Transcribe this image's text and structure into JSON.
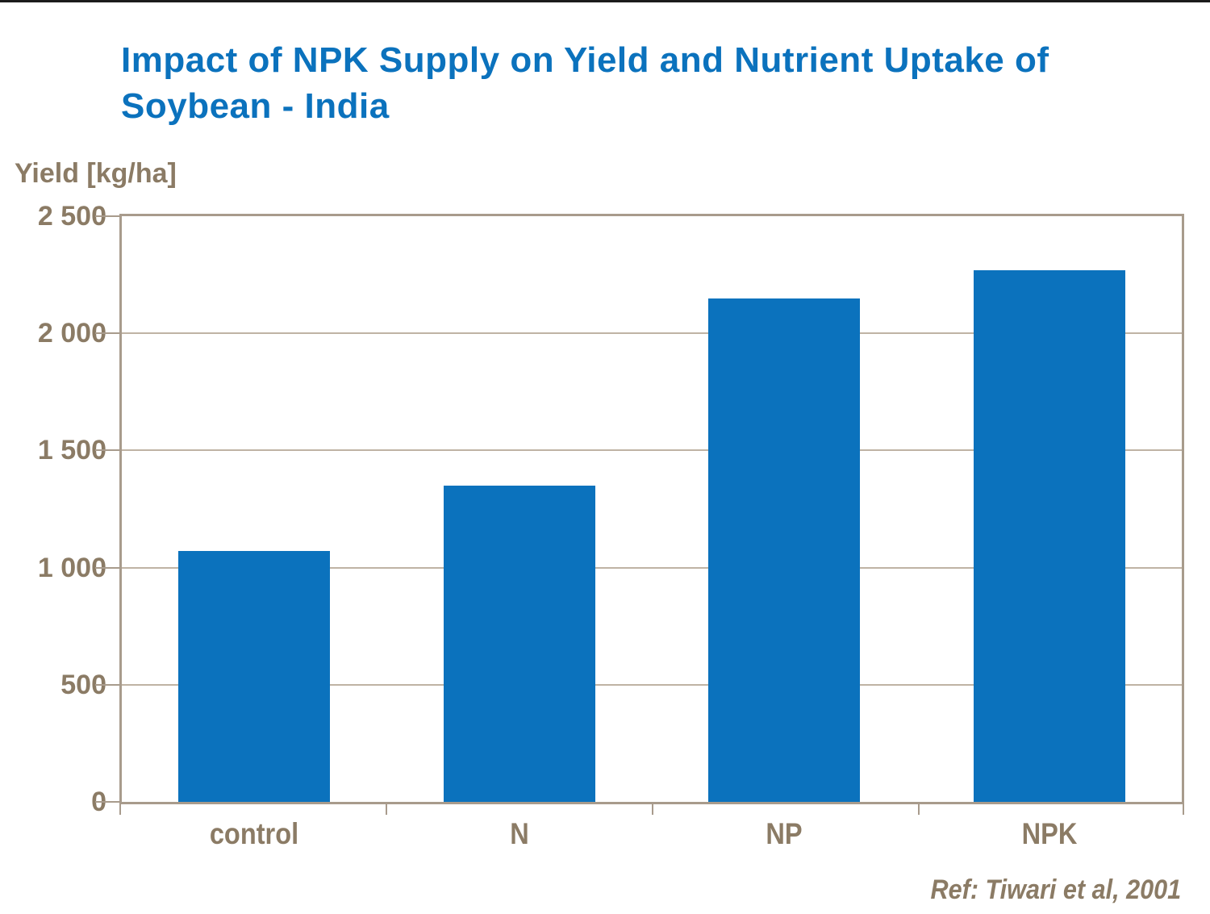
{
  "colors": {
    "accent_blue": "#0b72bd",
    "text_brown": "#8b7b65",
    "frame_taupe": "#a89b8c",
    "grid_taupe": "#bfb3a4",
    "top_line": "#1b1b1b"
  },
  "chart_data": {
    "type": "bar",
    "title": "Impact of NPK Supply on Yield and Nutrient Uptake of Soybean - India",
    "ylabel": "Yield [kg/ha]",
    "xlabel": "",
    "categories": [
      "control",
      "N",
      "NP",
      "NPK"
    ],
    "values": [
      1070,
      1350,
      2150,
      2270
    ],
    "ylim": [
      0,
      2500
    ],
    "ytick_step": 500,
    "ytick_labels": [
      "0",
      "500",
      "1 000",
      "1 500",
      "2 000",
      "2 500"
    ],
    "grid": true,
    "legend": "none",
    "bar_color": "#0b72bd"
  },
  "footnote": {
    "text": "Ref: Tiwari et al, 2001"
  }
}
